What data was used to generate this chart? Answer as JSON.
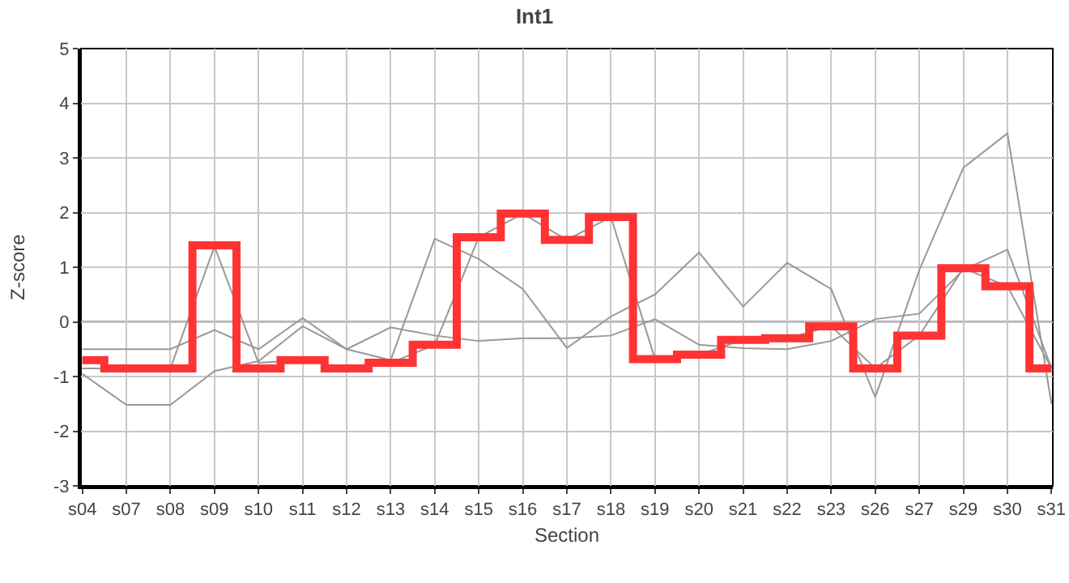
{
  "chart_data": {
    "type": "line",
    "title": "Int1",
    "xlabel": "Section",
    "ylabel": "Z-score",
    "categories": [
      "s04",
      "s07",
      "s08",
      "s09",
      "s10",
      "s11",
      "s12",
      "s13",
      "s14",
      "s15",
      "s16",
      "s17",
      "s18",
      "s19",
      "s20",
      "s21",
      "s22",
      "s23",
      "s26",
      "s27",
      "s29",
      "s30",
      "s31"
    ],
    "series": [
      {
        "color": "#999999",
        "values": [
          -0.5,
          -0.5,
          -0.5,
          -0.15,
          -0.5,
          0.07,
          -0.5,
          -0.1,
          -0.25,
          -0.35,
          -0.3,
          -0.3,
          -0.25,
          0.05,
          -0.42,
          -0.48,
          -0.5,
          -0.35,
          0.05,
          0.15,
          0.95,
          1.32,
          -0.85
        ]
      },
      {
        "color": "#999999",
        "values": [
          -0.95,
          -1.52,
          -1.52,
          -0.9,
          -0.72,
          -0.08,
          -0.5,
          -0.7,
          1.52,
          1.15,
          0.6,
          -0.48,
          0.1,
          0.5,
          1.27,
          0.28,
          1.08,
          0.6,
          -1.38,
          0.95,
          2.82,
          3.45,
          -1.5
        ]
      },
      {
        "color": "#999999",
        "values": [
          -0.85,
          -0.85,
          -0.85,
          1.38,
          -0.75,
          -0.7,
          -0.85,
          -0.75,
          -0.42,
          1.55,
          1.98,
          1.5,
          1.92,
          -0.68,
          -0.6,
          -0.33,
          -0.3,
          -0.08,
          -0.85,
          -0.25,
          0.98,
          0.65,
          -0.85
        ]
      },
      {
        "type": "step",
        "color": "#ff3333",
        "values": [
          -0.7,
          -0.85,
          -0.85,
          1.4,
          -0.85,
          -0.7,
          -0.85,
          -0.75,
          -0.42,
          1.55,
          1.98,
          1.5,
          1.92,
          -0.68,
          -0.6,
          -0.33,
          -0.3,
          -0.08,
          -0.85,
          -0.25,
          0.98,
          0.65,
          -0.85
        ]
      }
    ],
    "ylim": [
      -3,
      5
    ],
    "yticks": [
      -3,
      -2,
      -1,
      0,
      1,
      2,
      3,
      4,
      5
    ],
    "ref_lines": [
      {
        "axis": "y",
        "value": 0,
        "color": "#808080"
      }
    ],
    "grid": true,
    "marker": "none",
    "line_style": "solid"
  }
}
